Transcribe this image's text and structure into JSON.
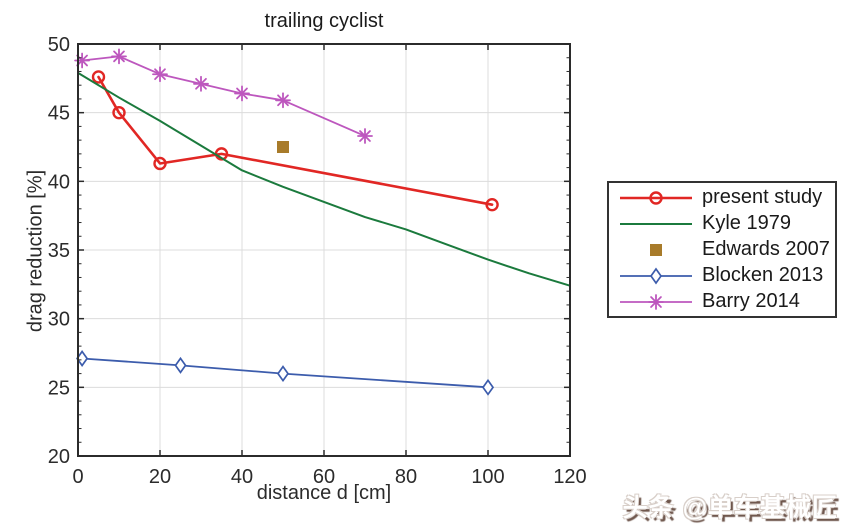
{
  "watermark": {
    "text": "头条 @单车基械匠"
  },
  "chart_data": {
    "type": "line",
    "title": "trailing cyclist",
    "xlabel": "distance d [cm]",
    "ylabel": "drag reduction [%]",
    "xlim": [
      0,
      120
    ],
    "ylim": [
      20,
      50
    ],
    "xticks": [
      0,
      20,
      40,
      60,
      80,
      100,
      120
    ],
    "yticks": [
      20,
      25,
      30,
      35,
      40,
      45,
      50
    ],
    "y_minor_tick_step": 1,
    "grid": true,
    "legend_position": "outside-right",
    "background": "#ffffff",
    "axis_color": "#2b2b2b",
    "grid_color": "#dcdcdc",
    "series": [
      {
        "name": "present study",
        "slug": "present-study",
        "color": "#e12724",
        "line": true,
        "line_width": 2.6,
        "marker": "circle",
        "x": [
          5,
          10,
          20,
          35,
          101
        ],
        "y": [
          47.6,
          45.0,
          41.3,
          42.0,
          38.3
        ]
      },
      {
        "name": "Kyle 1979",
        "slug": "kyle-1979",
        "color": "#1b7a3d",
        "line": true,
        "line_width": 2,
        "marker": "none",
        "x": [
          0,
          10,
          20,
          30,
          40,
          50,
          60,
          70,
          80,
          90,
          100,
          110,
          120
        ],
        "y": [
          47.9,
          46.1,
          44.4,
          42.6,
          40.8,
          39.6,
          38.5,
          37.4,
          36.5,
          35.4,
          34.3,
          33.3,
          32.4
        ]
      },
      {
        "name": "Edwards 2007",
        "slug": "edwards-2007",
        "color": "#a87b2a",
        "line": false,
        "line_width": 0,
        "marker": "square-filled",
        "x": [
          50
        ],
        "y": [
          42.5
        ]
      },
      {
        "name": "Blocken 2013",
        "slug": "blocken-2013",
        "color": "#3c5cac",
        "line": true,
        "line_width": 1.8,
        "marker": "diamond",
        "x": [
          1,
          25,
          50,
          100
        ],
        "y": [
          27.1,
          26.6,
          26.0,
          25.0
        ]
      },
      {
        "name": "Barry 2014",
        "slug": "barry-2014",
        "color": "#bd57be",
        "line": true,
        "line_width": 1.8,
        "marker": "asterisk",
        "x": [
          1,
          10,
          20,
          30,
          40,
          50,
          70
        ],
        "y": [
          48.8,
          49.1,
          47.8,
          47.1,
          46.4,
          45.9,
          43.3
        ]
      }
    ]
  }
}
